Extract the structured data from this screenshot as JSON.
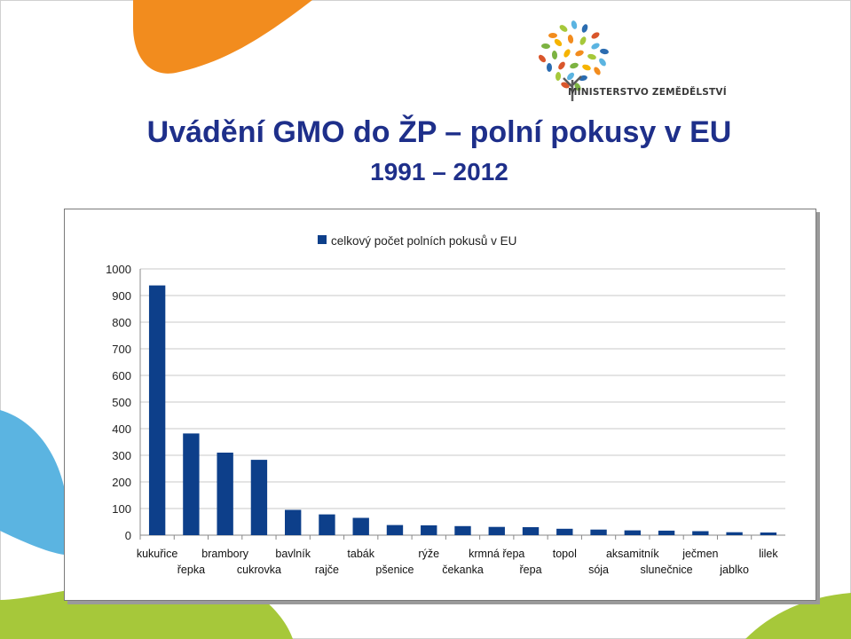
{
  "slide": {
    "title": "Uvádění GMO do ŽP – polní pokusy v EU",
    "subtitle": "1991 – 2012",
    "logo_text": "MINISTERSTVO ZEMĚDĚLSTVÍ"
  },
  "colors": {
    "bar": "#0d3f8a",
    "title": "#1e2f8a",
    "orange": "#f28c1e",
    "blue_deco": "#5bb4e1",
    "green_deco": "#a6c83a"
  },
  "chart_data": {
    "type": "bar",
    "title": "",
    "xlabel": "",
    "ylabel": "",
    "ylim": [
      0,
      1000
    ],
    "yticks": [
      0,
      100,
      200,
      300,
      400,
      500,
      600,
      700,
      800,
      900,
      1000
    ],
    "grid": true,
    "legend": "top-center",
    "categories": [
      "kukuřice",
      "řepka",
      "brambory",
      "cukrovka",
      "bavlník",
      "rajče",
      "tabák",
      "pšenice",
      "rýže",
      "čekanka",
      "krmná řepa",
      "řepa",
      "topol",
      "sója",
      "aksamitník",
      "slunečnice",
      "ječmen",
      "jablko",
      "lilek"
    ],
    "series": [
      {
        "name": "celkový počet polních pokusů v EU",
        "values": [
          938,
          382,
          310,
          283,
          95,
          78,
          65,
          38,
          37,
          34,
          31,
          30,
          24,
          21,
          18,
          17,
          15,
          11,
          10
        ]
      }
    ]
  }
}
